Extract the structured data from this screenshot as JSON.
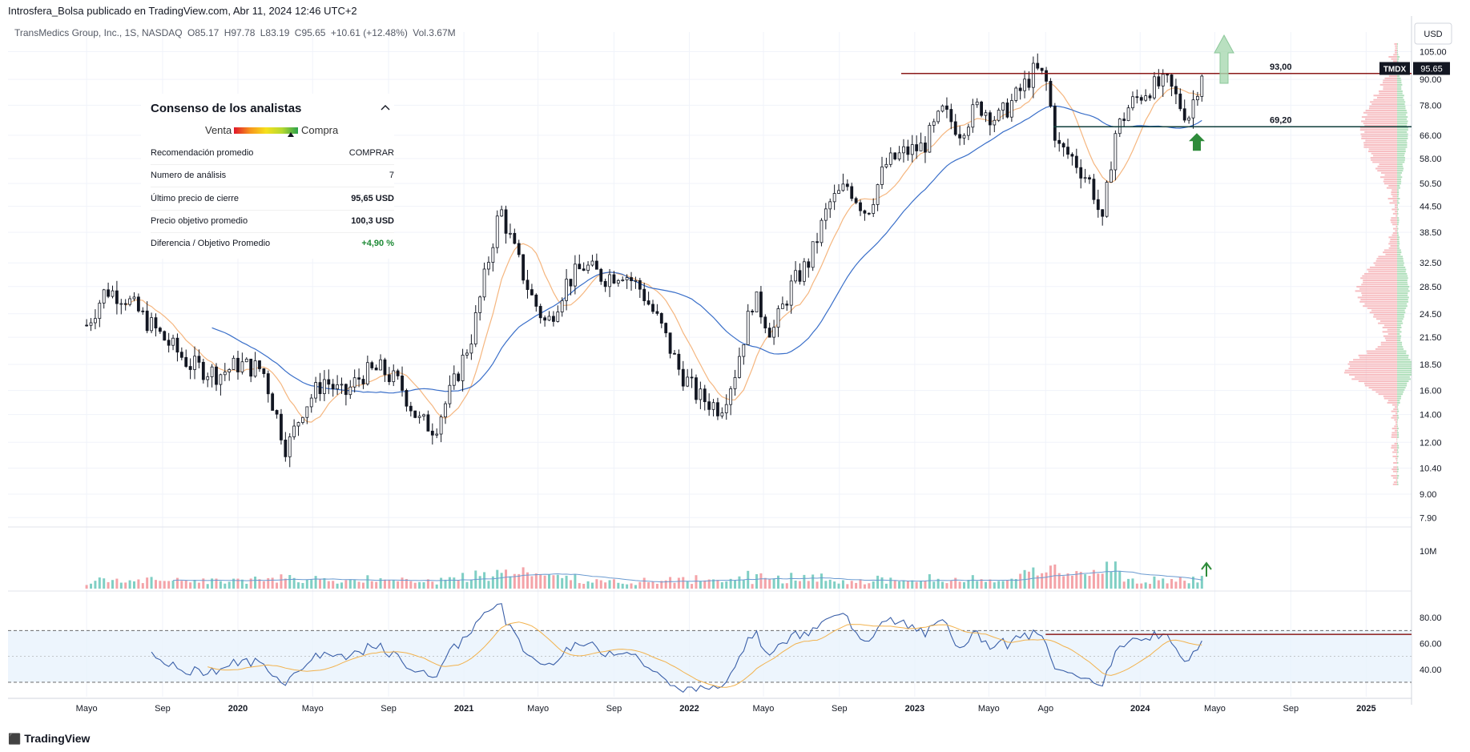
{
  "header": {
    "published": "Introsfera_Bolsa publicado en TradingView.com, Abr 11, 2024 12:46 UTC+2"
  },
  "symbol_line": {
    "name": "TransMedics Group, Inc., 1S, NASDAQ",
    "open": "O85.17",
    "high": "H97.78",
    "low": "L83.19",
    "close": "C95.65",
    "change": "+10.61 (+12.48%)",
    "volume": "Vol.3.67M"
  },
  "currency": "USD",
  "ticker": {
    "symbol": "TMDX",
    "price": "95.65"
  },
  "levels": {
    "resistance": "93,00",
    "support": "69,20"
  },
  "analyst_panel": {
    "title": "Consenso de los analistas",
    "gauge_left": "Venta",
    "gauge_right": "Compra",
    "rows": [
      {
        "label": "Recomendación promedio",
        "value": "COMPRAR"
      },
      {
        "label": "Numero de análisis",
        "value": "7"
      },
      {
        "label": "Último precio de cierre",
        "value": "95,65 USD"
      },
      {
        "label": "Precio objetivo promedio",
        "value": "100,3 USD"
      },
      {
        "label": "Diferencia / Objetivo Promedio",
        "value": "+4,90 %"
      }
    ]
  },
  "footer": {
    "brand": "TradingView"
  },
  "colors": {
    "up": "#131722",
    "down": "#131722",
    "ma_fast": "#f5b67f",
    "ma_slow": "#3a6fc9",
    "resistance": "#8b1a1a",
    "support": "#0f3d3a",
    "rsi": "#3a5fa8",
    "vol_up": "#7fcfc4",
    "vol_down": "#f4a3a8"
  },
  "chart_data": {
    "type": "candlestick",
    "interval": "1W",
    "y_scale": "log",
    "y_ticks": [
      "105.00",
      "90.00",
      "78.00",
      "66.00",
      "58.00",
      "50.50",
      "44.50",
      "38.50",
      "32.50",
      "28.50",
      "24.50",
      "21.50",
      "18.50",
      "16.00",
      "14.00",
      "12.00",
      "10.40",
      "9.00",
      "7.90"
    ],
    "x_ticks": [
      "Mayo",
      "Sep",
      "2020",
      "Mayo",
      "Sep",
      "2021",
      "Mayo",
      "Sep",
      "2022",
      "Mayo",
      "Sep",
      "2023",
      "Mayo",
      "Ago",
      "2024",
      "Mayo",
      "Sep",
      "2025"
    ],
    "price_anchors": [
      {
        "date": "2019-05-01",
        "close": 23.0
      },
      {
        "date": "2019-06-01",
        "close": 28.0
      },
      {
        "date": "2019-07-01",
        "close": 27.0
      },
      {
        "date": "2019-08-01",
        "close": 24.0
      },
      {
        "date": "2019-09-01",
        "close": 21.5
      },
      {
        "date": "2019-10-15",
        "close": 18.5
      },
      {
        "date": "2019-12-01",
        "close": 17.5
      },
      {
        "date": "2020-01-01",
        "close": 18.5
      },
      {
        "date": "2020-02-10",
        "close": 18.0
      },
      {
        "date": "2020-03-20",
        "close": 11.5
      },
      {
        "date": "2020-04-15",
        "close": 14.5
      },
      {
        "date": "2020-05-20",
        "close": 17.0
      },
      {
        "date": "2020-06-20",
        "close": 15.5
      },
      {
        "date": "2020-07-20",
        "close": 17.5
      },
      {
        "date": "2020-08-20",
        "close": 18.0
      },
      {
        "date": "2020-09-20",
        "close": 16.5
      },
      {
        "date": "2020-10-20",
        "close": 13.5
      },
      {
        "date": "2020-11-15",
        "close": 13.0
      },
      {
        "date": "2020-12-15",
        "close": 16.5
      },
      {
        "date": "2021-01-15",
        "close": 22.0
      },
      {
        "date": "2021-02-15",
        "close": 36.0
      },
      {
        "date": "2021-03-01",
        "close": 44.0
      },
      {
        "date": "2021-03-20",
        "close": 36.0
      },
      {
        "date": "2021-04-20",
        "close": 27.0
      },
      {
        "date": "2021-05-15",
        "close": 23.0
      },
      {
        "date": "2021-06-15",
        "close": 29.0
      },
      {
        "date": "2021-07-15",
        "close": 32.0
      },
      {
        "date": "2021-08-15",
        "close": 30.0
      },
      {
        "date": "2021-09-15",
        "close": 31.0
      },
      {
        "date": "2021-10-15",
        "close": 28.0
      },
      {
        "date": "2021-11-15",
        "close": 23.0
      },
      {
        "date": "2021-12-15",
        "close": 18.0
      },
      {
        "date": "2022-01-15",
        "close": 15.5
      },
      {
        "date": "2022-02-20",
        "close": 14.5
      },
      {
        "date": "2022-03-15",
        "close": 17.5
      },
      {
        "date": "2022-04-15",
        "close": 27.0
      },
      {
        "date": "2022-05-15",
        "close": 22.0
      },
      {
        "date": "2022-06-15",
        "close": 28.5
      },
      {
        "date": "2022-07-15",
        "close": 33.0
      },
      {
        "date": "2022-08-15",
        "close": 45.0
      },
      {
        "date": "2022-09-15",
        "close": 50.0
      },
      {
        "date": "2022-10-15",
        "close": 43.0
      },
      {
        "date": "2022-11-15",
        "close": 56.0
      },
      {
        "date": "2022-12-15",
        "close": 60.0
      },
      {
        "date": "2023-01-15",
        "close": 62.0
      },
      {
        "date": "2023-02-15",
        "close": 75.0
      },
      {
        "date": "2023-03-15",
        "close": 68.0
      },
      {
        "date": "2023-04-15",
        "close": 78.0
      },
      {
        "date": "2023-05-15",
        "close": 72.0
      },
      {
        "date": "2023-06-15",
        "close": 82.0
      },
      {
        "date": "2023-07-15",
        "close": 95.0
      },
      {
        "date": "2023-08-01",
        "close": 90.0
      },
      {
        "date": "2023-08-20",
        "close": 62.0
      },
      {
        "date": "2023-09-15",
        "close": 58.0
      },
      {
        "date": "2023-10-15",
        "close": 50.0
      },
      {
        "date": "2023-11-01",
        "close": 40.0
      },
      {
        "date": "2023-11-20",
        "close": 66.0
      },
      {
        "date": "2023-12-15",
        "close": 78.0
      },
      {
        "date": "2024-01-15",
        "close": 86.0
      },
      {
        "date": "2024-02-15",
        "close": 88.0
      },
      {
        "date": "2024-03-10",
        "close": 76.0
      },
      {
        "date": "2024-03-20",
        "close": 74.0
      },
      {
        "date": "2024-04-01",
        "close": 85.0
      },
      {
        "date": "2024-04-11",
        "close": 95.65
      }
    ],
    "horizontal_lines": [
      {
        "label": "93,00",
        "value": 93.0
      },
      {
        "label": "69,20",
        "value": 69.2
      }
    ],
    "rsi": {
      "upper": 70,
      "lower": 30,
      "y_ticks": [
        "80.00",
        "60.00",
        "40.00"
      ],
      "resistance_value": 67
    },
    "volume": {
      "y_ticks": [
        "10M"
      ]
    }
  }
}
